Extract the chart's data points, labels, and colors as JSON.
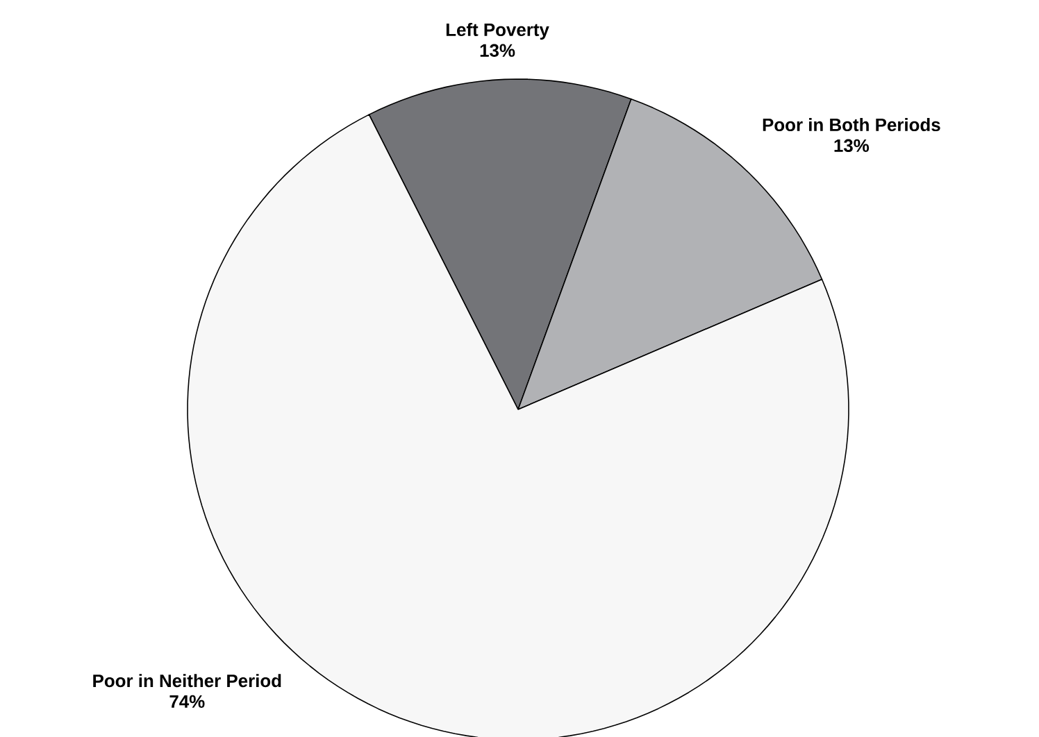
{
  "chart_data": {
    "type": "pie",
    "categories": [
      "Left Poverty",
      "Poor in Both Periods",
      "Poor in Neither Period"
    ],
    "values": [
      13,
      13,
      74
    ],
    "value_labels": [
      "13%",
      "13%",
      "74%"
    ],
    "colors": [
      "#737478",
      "#b1b2b5",
      "#f7f7f7"
    ]
  }
}
